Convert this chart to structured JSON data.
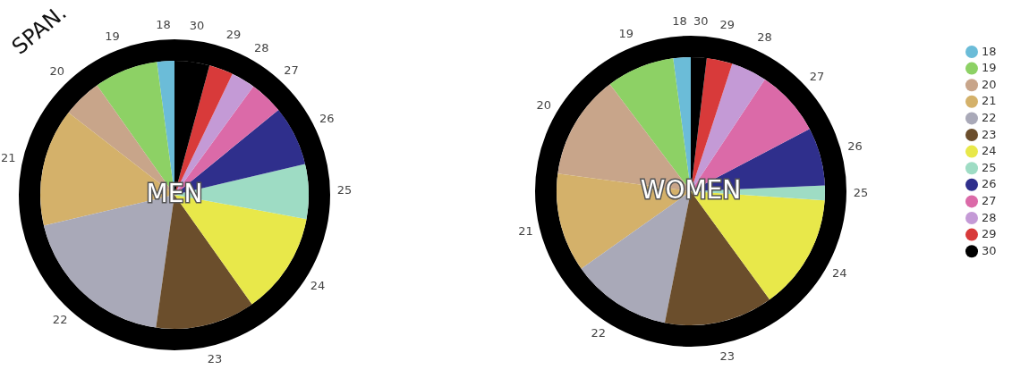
{
  "chart_data": [
    {
      "type": "pie",
      "title": "MEN",
      "annotations": [
        "SPAN."
      ],
      "legend": false,
      "categories": [
        "18",
        "19",
        "20",
        "21",
        "22",
        "23",
        "24",
        "25",
        "26",
        "27",
        "28",
        "29",
        "30"
      ],
      "values": [
        2.1,
        7.7,
        4.7,
        14.2,
        19.1,
        12.0,
        12.3,
        6.6,
        7.2,
        4.1,
        2.9,
        2.9,
        4.2
      ],
      "colors": [
        "#6bbcd8",
        "#8dd165",
        "#c8a58a",
        "#d4b16a",
        "#a9a9b8",
        "#6b4e2c",
        "#e8e84a",
        "#9edcc4",
        "#2f2f8c",
        "#db6aa8",
        "#c49ad6",
        "#d83a3a",
        "#000000"
      ]
    },
    {
      "type": "pie",
      "title": "WOMEN",
      "legend": "right",
      "categories": [
        "18",
        "19",
        "20",
        "21",
        "22",
        "23",
        "24",
        "25",
        "26",
        "27",
        "28",
        "29",
        "30"
      ],
      "values": [
        2.1,
        8.2,
        12.6,
        11.9,
        12.1,
        13.1,
        13.9,
        1.8,
        7.0,
        8.0,
        4.3,
        3.1,
        1.9
      ],
      "colors": [
        "#6bbcd8",
        "#8dd165",
        "#c8a58a",
        "#d4b16a",
        "#a9a9b8",
        "#6b4e2c",
        "#e8e84a",
        "#9edcc4",
        "#2f2f8c",
        "#db6aa8",
        "#c49ad6",
        "#d83a3a",
        "#000000"
      ]
    }
  ]
}
